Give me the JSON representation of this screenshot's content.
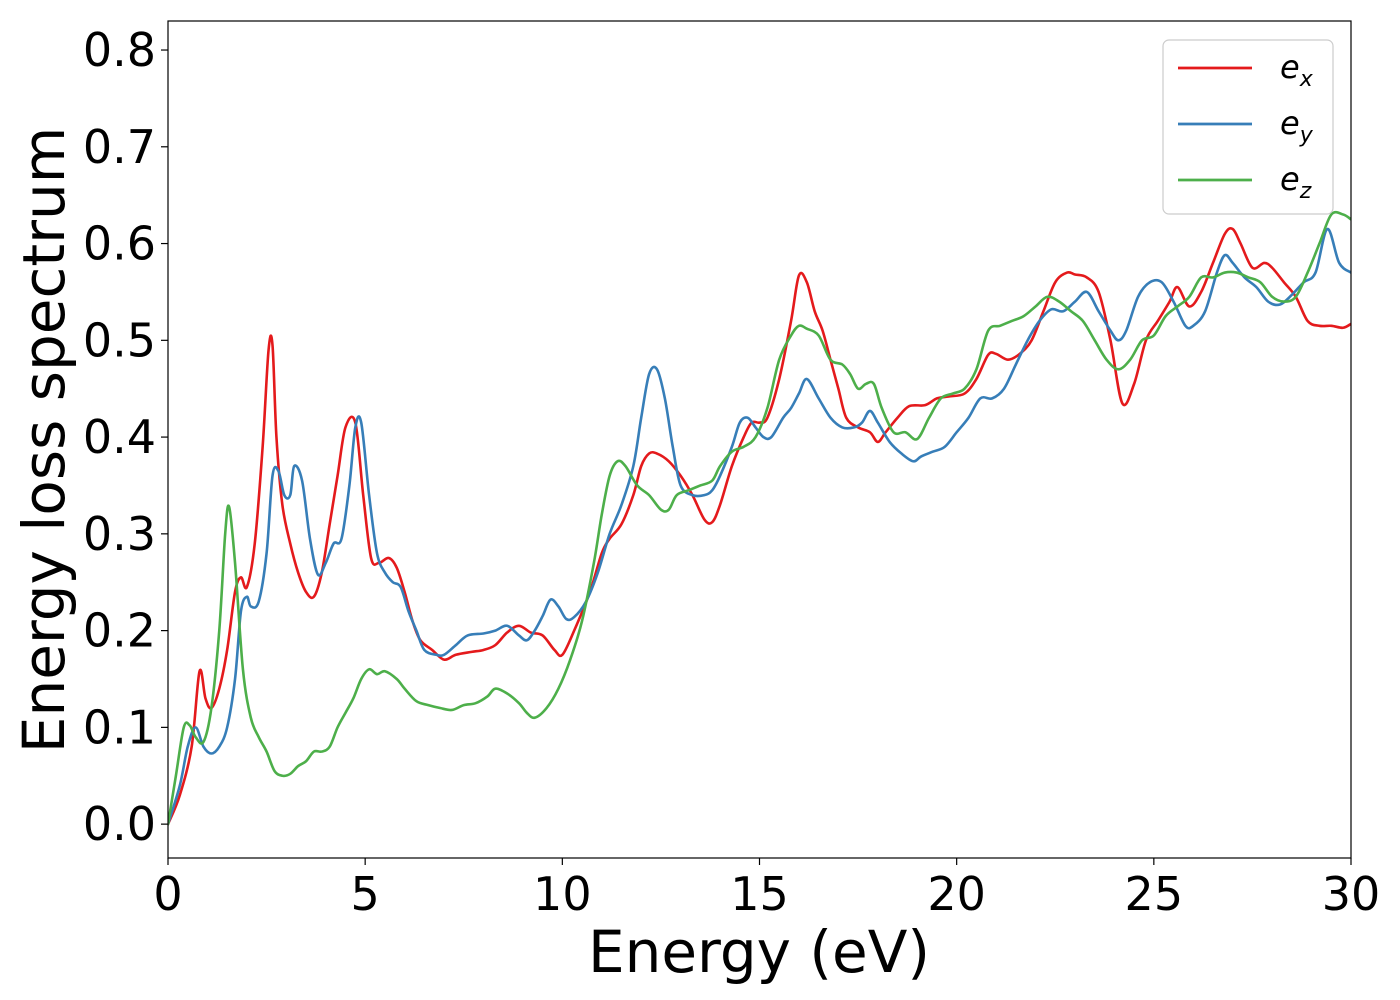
{
  "chart_data": {
    "type": "line",
    "title": "",
    "xlabel": "Energy (eV)",
    "ylabel": "Energy loss spectrum",
    "xlim": [
      0,
      30
    ],
    "ylim": [
      -0.035,
      0.83
    ],
    "xticks": [
      0,
      5,
      10,
      15,
      20,
      25,
      30
    ],
    "xtick_labels": [
      "0",
      "5",
      "10",
      "15",
      "20",
      "25",
      "30"
    ],
    "yticks": [
      0.0,
      0.1,
      0.2,
      0.3,
      0.4,
      0.5,
      0.6,
      0.7,
      0.8
    ],
    "ytick_labels": [
      "0.0",
      "0.1",
      "0.2",
      "0.3",
      "0.4",
      "0.5",
      "0.6",
      "0.7",
      "0.8"
    ],
    "grid": false,
    "legend_position": "top-right",
    "series": [
      {
        "name": "e_x",
        "label_base": "e",
        "label_sub": "x",
        "color": "#e41a1c",
        "x": [
          0,
          0.3,
          0.6,
          0.8,
          0.95,
          1.1,
          1.3,
          1.5,
          1.7,
          1.85,
          2.0,
          2.2,
          2.4,
          2.55,
          2.65,
          2.75,
          2.9,
          3.1,
          3.3,
          3.5,
          3.7,
          3.9,
          4.1,
          4.3,
          4.5,
          4.75,
          4.95,
          5.15,
          5.35,
          5.6,
          5.8,
          6.0,
          6.2,
          6.4,
          6.7,
          7.0,
          7.3,
          7.7,
          8.0,
          8.3,
          8.6,
          8.9,
          9.2,
          9.5,
          9.8,
          10.0,
          10.3,
          10.7,
          11.0,
          11.2,
          11.5,
          11.8,
          12.0,
          12.2,
          12.4,
          12.7,
          13.0,
          13.3,
          13.6,
          13.8,
          14.0,
          14.3,
          14.6,
          14.8,
          15.0,
          15.2,
          15.5,
          15.8,
          16.0,
          16.2,
          16.4,
          16.6,
          16.8,
          17.0,
          17.2,
          17.5,
          17.8,
          18.0,
          18.2,
          18.5,
          18.8,
          19.2,
          19.5,
          19.8,
          20.2,
          20.5,
          20.8,
          21.0,
          21.3,
          21.6,
          21.9,
          22.2,
          22.5,
          22.8,
          23.0,
          23.3,
          23.6,
          23.9,
          24.2,
          24.5,
          24.8,
          25.1,
          25.4,
          25.6,
          25.9,
          26.2,
          26.5,
          26.8,
          27.0,
          27.2,
          27.5,
          27.8,
          28.0,
          28.3,
          28.6,
          28.9,
          29.2,
          29.5,
          29.8,
          30.0
        ],
        "values": [
          0.0,
          0.03,
          0.08,
          0.158,
          0.13,
          0.12,
          0.14,
          0.18,
          0.24,
          0.255,
          0.245,
          0.29,
          0.39,
          0.49,
          0.495,
          0.4,
          0.33,
          0.29,
          0.26,
          0.24,
          0.235,
          0.26,
          0.31,
          0.36,
          0.41,
          0.415,
          0.34,
          0.275,
          0.27,
          0.275,
          0.265,
          0.24,
          0.21,
          0.19,
          0.18,
          0.17,
          0.175,
          0.178,
          0.18,
          0.185,
          0.198,
          0.205,
          0.198,
          0.195,
          0.18,
          0.175,
          0.2,
          0.24,
          0.28,
          0.295,
          0.31,
          0.34,
          0.37,
          0.383,
          0.383,
          0.375,
          0.36,
          0.34,
          0.315,
          0.312,
          0.33,
          0.37,
          0.4,
          0.415,
          0.415,
          0.42,
          0.46,
          0.52,
          0.567,
          0.56,
          0.53,
          0.51,
          0.48,
          0.45,
          0.42,
          0.41,
          0.405,
          0.395,
          0.405,
          0.42,
          0.432,
          0.433,
          0.44,
          0.442,
          0.445,
          0.46,
          0.485,
          0.486,
          0.48,
          0.486,
          0.5,
          0.53,
          0.56,
          0.57,
          0.568,
          0.565,
          0.55,
          0.5,
          0.435,
          0.455,
          0.5,
          0.52,
          0.54,
          0.555,
          0.535,
          0.55,
          0.58,
          0.61,
          0.615,
          0.6,
          0.575,
          0.58,
          0.575,
          0.56,
          0.545,
          0.52,
          0.515,
          0.515,
          0.513,
          0.517
        ]
      },
      {
        "name": "e_y",
        "label_base": "e",
        "label_sub": "y",
        "color": "#377eb8",
        "x": [
          0,
          0.3,
          0.5,
          0.7,
          0.9,
          1.1,
          1.3,
          1.5,
          1.7,
          1.85,
          2.0,
          2.1,
          2.3,
          2.5,
          2.65,
          2.8,
          2.95,
          3.1,
          3.2,
          3.4,
          3.6,
          3.8,
          4.0,
          4.2,
          4.4,
          4.6,
          4.75,
          4.9,
          5.1,
          5.3,
          5.5,
          5.7,
          5.9,
          6.1,
          6.3,
          6.5,
          6.8,
          7.0,
          7.3,
          7.6,
          8.0,
          8.3,
          8.6,
          8.9,
          9.1,
          9.3,
          9.5,
          9.7,
          9.9,
          10.1,
          10.3,
          10.6,
          10.9,
          11.2,
          11.5,
          11.8,
          12.0,
          12.2,
          12.4,
          12.6,
          12.8,
          13.0,
          13.3,
          13.6,
          13.8,
          14.0,
          14.3,
          14.5,
          14.7,
          14.9,
          15.1,
          15.3,
          15.6,
          15.8,
          16.0,
          16.2,
          16.5,
          16.8,
          17.1,
          17.4,
          17.6,
          17.8,
          18.0,
          18.3,
          18.6,
          18.9,
          19.1,
          19.4,
          19.7,
          20.0,
          20.3,
          20.6,
          20.9,
          21.2,
          21.5,
          21.8,
          22.1,
          22.4,
          22.7,
          23.0,
          23.3,
          23.6,
          23.9,
          24.1,
          24.3,
          24.6,
          24.9,
          25.2,
          25.5,
          25.8,
          26.0,
          26.3,
          26.6,
          26.8,
          27.0,
          27.3,
          27.6,
          27.9,
          28.2,
          28.5,
          28.8,
          29.1,
          29.4,
          29.7,
          30.0
        ],
        "values": [
          0.0,
          0.04,
          0.08,
          0.1,
          0.08,
          0.073,
          0.08,
          0.1,
          0.15,
          0.22,
          0.235,
          0.225,
          0.23,
          0.28,
          0.36,
          0.365,
          0.34,
          0.34,
          0.37,
          0.355,
          0.295,
          0.258,
          0.27,
          0.29,
          0.295,
          0.35,
          0.41,
          0.415,
          0.34,
          0.28,
          0.26,
          0.25,
          0.245,
          0.22,
          0.2,
          0.18,
          0.175,
          0.175,
          0.185,
          0.195,
          0.197,
          0.2,
          0.205,
          0.195,
          0.19,
          0.2,
          0.215,
          0.232,
          0.225,
          0.212,
          0.214,
          0.23,
          0.26,
          0.3,
          0.33,
          0.37,
          0.42,
          0.465,
          0.47,
          0.44,
          0.39,
          0.35,
          0.34,
          0.34,
          0.345,
          0.36,
          0.39,
          0.415,
          0.42,
          0.41,
          0.4,
          0.4,
          0.42,
          0.43,
          0.445,
          0.46,
          0.44,
          0.42,
          0.41,
          0.41,
          0.415,
          0.427,
          0.415,
          0.395,
          0.383,
          0.375,
          0.38,
          0.385,
          0.39,
          0.405,
          0.42,
          0.44,
          0.44,
          0.45,
          0.475,
          0.5,
          0.52,
          0.532,
          0.53,
          0.54,
          0.55,
          0.53,
          0.51,
          0.5,
          0.51,
          0.545,
          0.56,
          0.56,
          0.54,
          0.515,
          0.515,
          0.53,
          0.57,
          0.588,
          0.58,
          0.565,
          0.555,
          0.54,
          0.537,
          0.547,
          0.56,
          0.57,
          0.615,
          0.58,
          0.57
        ]
      },
      {
        "name": "e_z",
        "label_base": "e",
        "label_sub": "z",
        "color": "#4daf4a",
        "x": [
          0,
          0.2,
          0.4,
          0.55,
          0.7,
          0.9,
          1.1,
          1.3,
          1.45,
          1.55,
          1.7,
          1.9,
          2.1,
          2.3,
          2.5,
          2.7,
          2.9,
          3.1,
          3.3,
          3.5,
          3.7,
          3.9,
          4.1,
          4.3,
          4.5,
          4.7,
          4.9,
          5.1,
          5.3,
          5.5,
          5.8,
          6.0,
          6.3,
          6.6,
          6.9,
          7.2,
          7.5,
          7.8,
          8.1,
          8.3,
          8.6,
          8.9,
          9.1,
          9.3,
          9.6,
          9.9,
          10.2,
          10.5,
          10.8,
          11.0,
          11.2,
          11.4,
          11.6,
          11.9,
          12.2,
          12.5,
          12.7,
          12.9,
          13.2,
          13.5,
          13.8,
          14.0,
          14.3,
          14.6,
          14.9,
          15.2,
          15.5,
          15.8,
          16.0,
          16.2,
          16.5,
          16.8,
          17.1,
          17.3,
          17.5,
          17.7,
          17.9,
          18.1,
          18.4,
          18.7,
          19.0,
          19.3,
          19.6,
          19.9,
          20.2,
          20.5,
          20.8,
          21.1,
          21.4,
          21.7,
          22.0,
          22.3,
          22.6,
          22.9,
          23.2,
          23.5,
          23.8,
          24.1,
          24.4,
          24.7,
          25.0,
          25.3,
          25.6,
          25.9,
          26.2,
          26.5,
          26.8,
          27.1,
          27.4,
          27.7,
          28.0,
          28.3,
          28.6,
          28.9,
          29.2,
          29.5,
          29.8,
          30.0
        ],
        "values": [
          0.0,
          0.05,
          0.1,
          0.102,
          0.09,
          0.085,
          0.12,
          0.2,
          0.3,
          0.328,
          0.27,
          0.16,
          0.11,
          0.09,
          0.075,
          0.055,
          0.05,
          0.052,
          0.06,
          0.065,
          0.075,
          0.075,
          0.08,
          0.1,
          0.115,
          0.13,
          0.15,
          0.16,
          0.155,
          0.158,
          0.15,
          0.14,
          0.127,
          0.123,
          0.12,
          0.118,
          0.123,
          0.125,
          0.132,
          0.14,
          0.135,
          0.125,
          0.115,
          0.11,
          0.12,
          0.14,
          0.17,
          0.21,
          0.27,
          0.32,
          0.36,
          0.375,
          0.37,
          0.35,
          0.34,
          0.325,
          0.325,
          0.34,
          0.345,
          0.35,
          0.355,
          0.37,
          0.385,
          0.39,
          0.4,
          0.43,
          0.48,
          0.505,
          0.515,
          0.512,
          0.505,
          0.48,
          0.475,
          0.465,
          0.45,
          0.455,
          0.455,
          0.43,
          0.405,
          0.405,
          0.398,
          0.42,
          0.44,
          0.445,
          0.45,
          0.47,
          0.51,
          0.515,
          0.52,
          0.525,
          0.535,
          0.545,
          0.54,
          0.53,
          0.52,
          0.5,
          0.48,
          0.47,
          0.48,
          0.5,
          0.505,
          0.525,
          0.535,
          0.545,
          0.565,
          0.565,
          0.57,
          0.57,
          0.565,
          0.56,
          0.545,
          0.54,
          0.545,
          0.57,
          0.6,
          0.63,
          0.63,
          0.625
        ]
      }
    ]
  }
}
